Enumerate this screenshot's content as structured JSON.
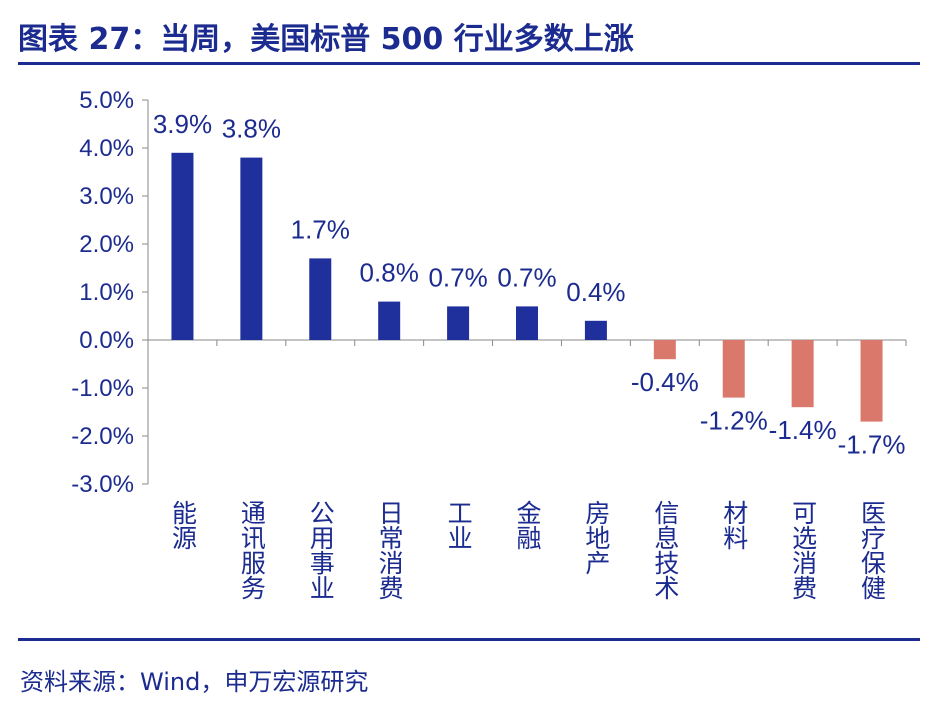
{
  "title": "图表 27：当周，美国标普 500 行业多数上涨",
  "source": "资料来源：Wind，申万宏源研究",
  "colors": {
    "positive": "#1f2f9c",
    "negative": "#d9786b",
    "text": "#1b2b8f"
  },
  "chart_data": {
    "type": "bar",
    "title": "",
    "xlabel": "",
    "ylabel": "",
    "ylim": [
      -3.0,
      5.0
    ],
    "yticks": [
      "5.0%",
      "4.0%",
      "3.0%",
      "2.0%",
      "1.0%",
      "0.0%",
      "-1.0%",
      "-2.0%",
      "-3.0%"
    ],
    "grid": false,
    "categories": [
      "能源",
      "通讯服务",
      "公用事业",
      "日常消费",
      "工业",
      "金融",
      "房地产",
      "信息技术",
      "材料",
      "可选消费",
      "医疗保健"
    ],
    "values": [
      3.9,
      3.8,
      1.7,
      0.8,
      0.7,
      0.7,
      0.4,
      -0.4,
      -1.2,
      -1.4,
      -1.7
    ],
    "labels": [
      "3.9%",
      "3.8%",
      "1.7%",
      "0.8%",
      "0.7%",
      "0.7%",
      "0.4%",
      "-0.4%",
      "-1.2%",
      "-1.4%",
      "-1.7%"
    ]
  }
}
